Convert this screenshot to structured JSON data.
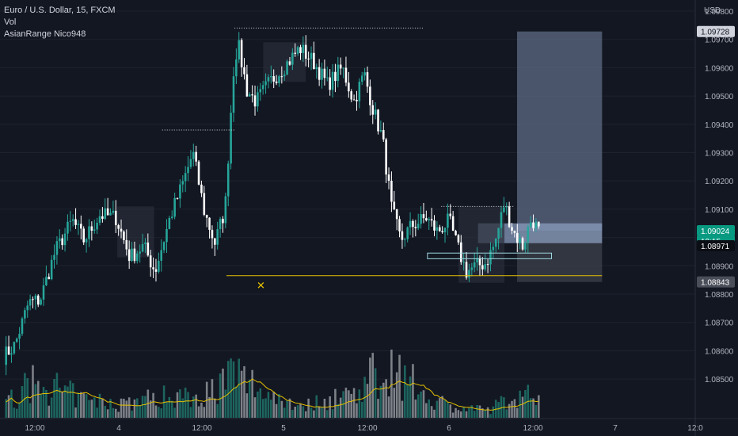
{
  "legend": {
    "symbol": "Euro / U.S. Dollar, 15, FXCM",
    "vol": "Vol",
    "indicator": "AsianRange Nico948"
  },
  "currency": "USD",
  "colors": {
    "background": "#131722",
    "up": "#26a69a",
    "down": "#ffffff",
    "grid": "#1e222d",
    "range_box": "#2a2e39",
    "level_line": "#e5c100",
    "target_zone": "#5d6b85",
    "stop_zone": "#3b3f49",
    "vol_up": "#1f6e66",
    "vol_down": "#8a8d94",
    "vol_ma": "#e5c100",
    "cyan_box": "#9ed8e0"
  },
  "chart_data": {
    "type": "candlestick",
    "ylim": [
      1.0843,
      1.0982
    ],
    "y_ticks": [
      "1.09800",
      "1.09700",
      "1.09600",
      "1.09500",
      "1.09400",
      "1.09300",
      "1.09200",
      "1.09100",
      "1.09000",
      "1.08900",
      "1.08800",
      "1.08700",
      "1.08600",
      "1.08500"
    ],
    "x_ticks": [
      "12:00",
      "4",
      "12:00",
      "5",
      "12:00",
      "6",
      "12:00",
      "7",
      "12:0"
    ],
    "price_tags": [
      {
        "label": "1.09728",
        "value": 1.09728,
        "style": "light"
      },
      {
        "label": "1.09024",
        "value": 1.09024,
        "style": "green"
      },
      {
        "label": "13:15",
        "value": 1.09024,
        "style": "green"
      },
      {
        "label": "1.08971",
        "value": 1.08971,
        "style": "dark"
      },
      {
        "label": "1.08843",
        "value": 1.08843,
        "style": "gray"
      }
    ],
    "anchors": [
      {
        "t": 0,
        "p": 1.0858
      },
      {
        "t": 10,
        "p": 1.0862
      },
      {
        "t": 22,
        "p": 1.0877
      },
      {
        "t": 32,
        "p": 1.0878
      },
      {
        "t": 45,
        "p": 1.0895
      },
      {
        "t": 60,
        "p": 1.0906
      },
      {
        "t": 70,
        "p": 1.0899
      },
      {
        "t": 84,
        "p": 1.0908
      },
      {
        "t": 98,
        "p": 1.0907
      },
      {
        "t": 110,
        "p": 1.0893
      },
      {
        "t": 122,
        "p": 1.0897
      },
      {
        "t": 132,
        "p": 1.0888
      },
      {
        "t": 145,
        "p": 1.0907
      },
      {
        "t": 156,
        "p": 1.0919
      },
      {
        "t": 165,
        "p": 1.093
      },
      {
        "t": 175,
        "p": 1.0909
      },
      {
        "t": 184,
        "p": 1.0898
      },
      {
        "t": 193,
        "p": 1.091
      },
      {
        "t": 200,
        "p": 1.0958
      },
      {
        "t": 204,
        "p": 1.0969
      },
      {
        "t": 212,
        "p": 1.0952
      },
      {
        "t": 220,
        "p": 1.0948
      },
      {
        "t": 232,
        "p": 1.0955
      },
      {
        "t": 248,
        "p": 1.0962
      },
      {
        "t": 258,
        "p": 1.0967
      },
      {
        "t": 270,
        "p": 1.0962
      },
      {
        "t": 282,
        "p": 1.0954
      },
      {
        "t": 295,
        "p": 1.096
      },
      {
        "t": 305,
        "p": 1.0948
      },
      {
        "t": 314,
        "p": 1.0958
      },
      {
        "t": 322,
        "p": 1.0945
      },
      {
        "t": 330,
        "p": 1.0935
      },
      {
        "t": 338,
        "p": 1.091
      },
      {
        "t": 346,
        "p": 1.0899
      },
      {
        "t": 355,
        "p": 1.0904
      },
      {
        "t": 368,
        "p": 1.0907
      },
      {
        "t": 378,
        "p": 1.0902
      },
      {
        "t": 388,
        "p": 1.0906
      },
      {
        "t": 395,
        "p": 1.0897
      },
      {
        "t": 403,
        "p": 1.0888
      },
      {
        "t": 412,
        "p": 1.089
      },
      {
        "t": 420,
        "p": 1.0891
      },
      {
        "t": 428,
        "p": 1.0898
      },
      {
        "t": 436,
        "p": 1.0912
      },
      {
        "t": 444,
        "p": 1.0902
      },
      {
        "t": 452,
        "p": 1.0897
      },
      {
        "t": 460,
        "p": 1.0907
      },
      {
        "t": 466,
        "p": 1.0902
      }
    ],
    "candle_count": 200,
    "t_max": 466,
    "volume_profile": [
      {
        "t": 0,
        "v": 0.15
      },
      {
        "t": 25,
        "v": 0.35
      },
      {
        "t": 45,
        "v": 0.3
      },
      {
        "t": 70,
        "v": 0.18
      },
      {
        "t": 100,
        "v": 0.15
      },
      {
        "t": 140,
        "v": 0.22
      },
      {
        "t": 175,
        "v": 0.25
      },
      {
        "t": 200,
        "v": 0.45
      },
      {
        "t": 230,
        "v": 0.25
      },
      {
        "t": 260,
        "v": 0.12
      },
      {
        "t": 300,
        "v": 0.25
      },
      {
        "t": 335,
        "v": 0.55
      },
      {
        "t": 360,
        "v": 0.3
      },
      {
        "t": 390,
        "v": 0.1
      },
      {
        "t": 420,
        "v": 0.08
      },
      {
        "t": 450,
        "v": 0.25
      },
      {
        "t": 466,
        "v": 0.2
      }
    ],
    "asian_range_boxes": [
      {
        "t0": 98,
        "t1": 130,
        "hi": 1.0911,
        "lo": 1.0893
      },
      {
        "t0": 225,
        "t1": 262,
        "hi": 1.0969,
        "lo": 1.0955
      },
      {
        "t0": 395,
        "t1": 435,
        "hi": 1.0911,
        "lo": 1.0884
      }
    ],
    "session_lines": [
      {
        "t0": 200,
        "t1": 364,
        "p": 1.0974,
        "style": "dotted"
      },
      {
        "t0": 137,
        "t1": 200,
        "p": 1.0938,
        "style": "dotted"
      },
      {
        "t0": 380,
        "t1": 443,
        "p": 1.0911,
        "style": "dotted"
      }
    ],
    "key_level": {
      "t0": 193,
      "t1": 520,
      "p": 1.08865
    },
    "marker": {
      "t": 223,
      "p": 1.0883,
      "symbol": "✕"
    },
    "position": {
      "t0": 446,
      "t1": 520,
      "entry": 1.09024,
      "target": 1.09728,
      "stop": 1.08843
    },
    "zone_box": {
      "t0": 368,
      "t1": 476,
      "hi": 1.08945,
      "lo": 1.08925
    }
  }
}
